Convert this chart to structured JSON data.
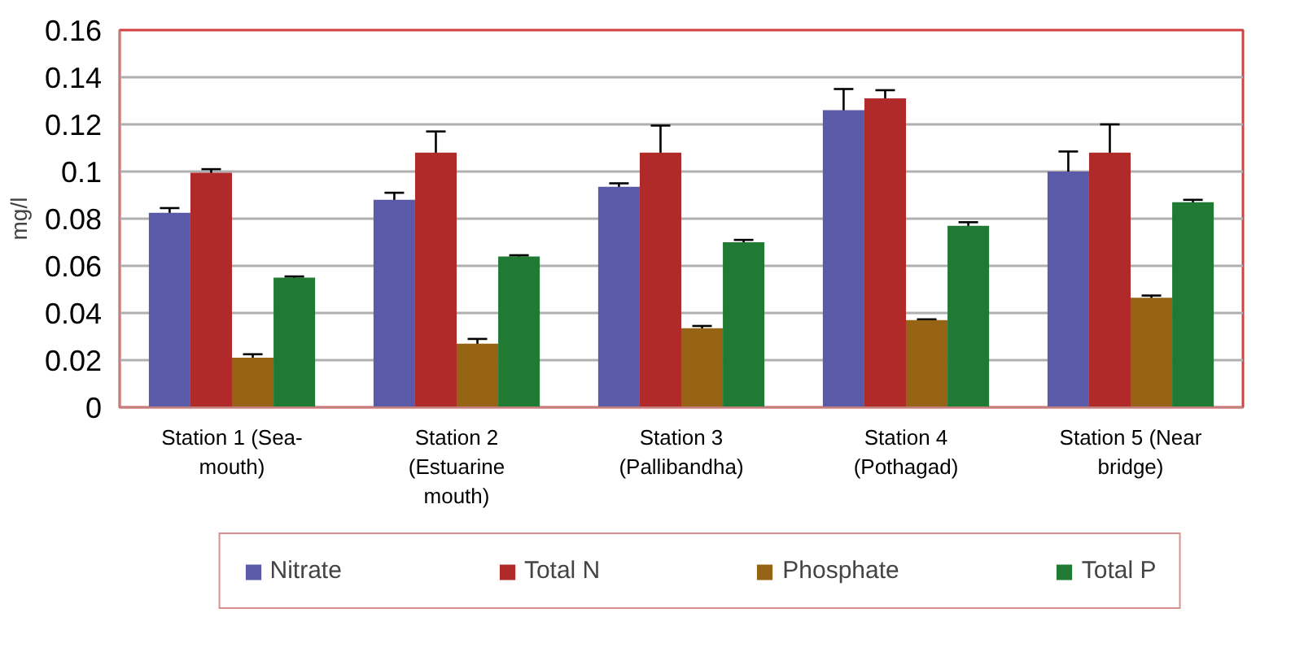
{
  "chart_data": {
    "type": "bar",
    "ylabel": "mg/l",
    "categories": [
      "Station 1 (Sea-mouth)",
      "Station 2 (Estuarine mouth)",
      "Station 3 (Pallibandha)",
      "Station 4 (Pothagad)",
      "Station 5 (Near bridge)"
    ],
    "series": [
      {
        "name": "Nitrate",
        "color": "#5a5aa8",
        "values": [
          0.0825,
          0.088,
          0.0935,
          0.126,
          0.1
        ],
        "errors": [
          0.002,
          0.003,
          0.0015,
          0.009,
          0.0085
        ]
      },
      {
        "name": "Total N",
        "color": "#b02a2a",
        "values": [
          0.0995,
          0.108,
          0.108,
          0.131,
          0.108
        ],
        "errors": [
          0.0015,
          0.009,
          0.0115,
          0.0035,
          0.012
        ]
      },
      {
        "name": "Phosphate",
        "color": "#966414",
        "values": [
          0.021,
          0.027,
          0.0335,
          0.037,
          0.0465
        ],
        "errors": [
          0.0015,
          0.002,
          0.001,
          0.0003,
          0.0009
        ]
      },
      {
        "name": "Total P",
        "color": "#217a33",
        "values": [
          0.055,
          0.064,
          0.07,
          0.077,
          0.087
        ],
        "errors": [
          0.0005,
          0.0005,
          0.001,
          0.0015,
          0.001
        ]
      }
    ],
    "ylim": [
      0,
      0.16
    ],
    "yticks": [
      0,
      {
        "value": 0.02,
        "label": "0.02"
      },
      {
        "value": 0.04,
        "label": "0.04"
      },
      {
        "value": 0.06,
        "label": "0.06"
      },
      {
        "value": 0.08,
        "label": "0.08"
      },
      {
        "value": 0.1,
        "label": "0.1"
      },
      {
        "value": 0.12,
        "label": "0.12"
      },
      {
        "value": 0.14,
        "label": "0.14"
      },
      {
        "value": 0.16,
        "label": "0.16"
      }
    ],
    "grid": "y",
    "legend": "bottom"
  }
}
